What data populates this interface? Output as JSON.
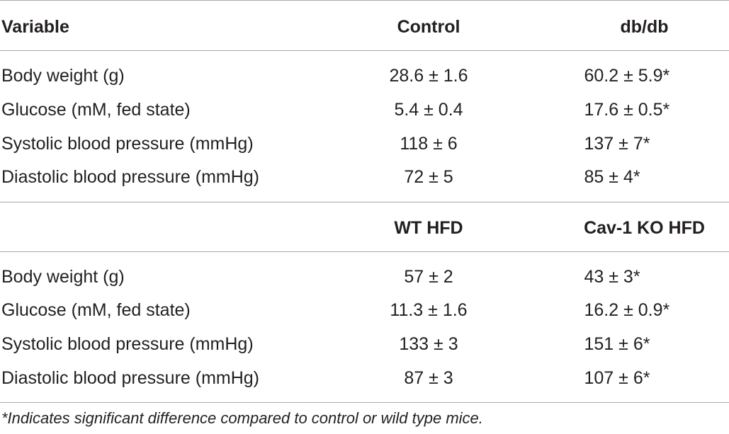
{
  "section1": {
    "header": {
      "variable": "Variable",
      "col_a": "Control",
      "col_b": "db/db"
    },
    "rows": [
      {
        "variable": "Body weight (g)",
        "a": "28.6 ± 1.6",
        "b": "60.2 ± 5.9*"
      },
      {
        "variable": "Glucose (mM, fed state)",
        "a": "5.4 ± 0.4",
        "b": "17.6 ± 0.5*"
      },
      {
        "variable": "Systolic blood pressure (mmHg)",
        "a": "118 ± 6",
        "b": "137 ± 7*"
      },
      {
        "variable": "Diastolic blood pressure (mmHg)",
        "a": "72 ± 5",
        "b": "85 ± 4*"
      }
    ]
  },
  "section2": {
    "header": {
      "variable": "",
      "col_a": "WT HFD",
      "col_b": "Cav-1 KO HFD"
    },
    "rows": [
      {
        "variable": "Body weight (g)",
        "a": "57 ± 2",
        "b": "43 ± 3*"
      },
      {
        "variable": "Glucose (mM, fed state)",
        "a": "11.3 ± 1.6",
        "b": "16.2 ± 0.9*"
      },
      {
        "variable": "Systolic blood pressure (mmHg)",
        "a": "133 ± 3",
        "b": "151 ± 6*"
      },
      {
        "variable": "Diastolic blood pressure (mmHg)",
        "a": "87 ± 3",
        "b": "107 ± 6*"
      }
    ]
  },
  "footnote": "*Indicates significant difference compared to control or wild type mice."
}
